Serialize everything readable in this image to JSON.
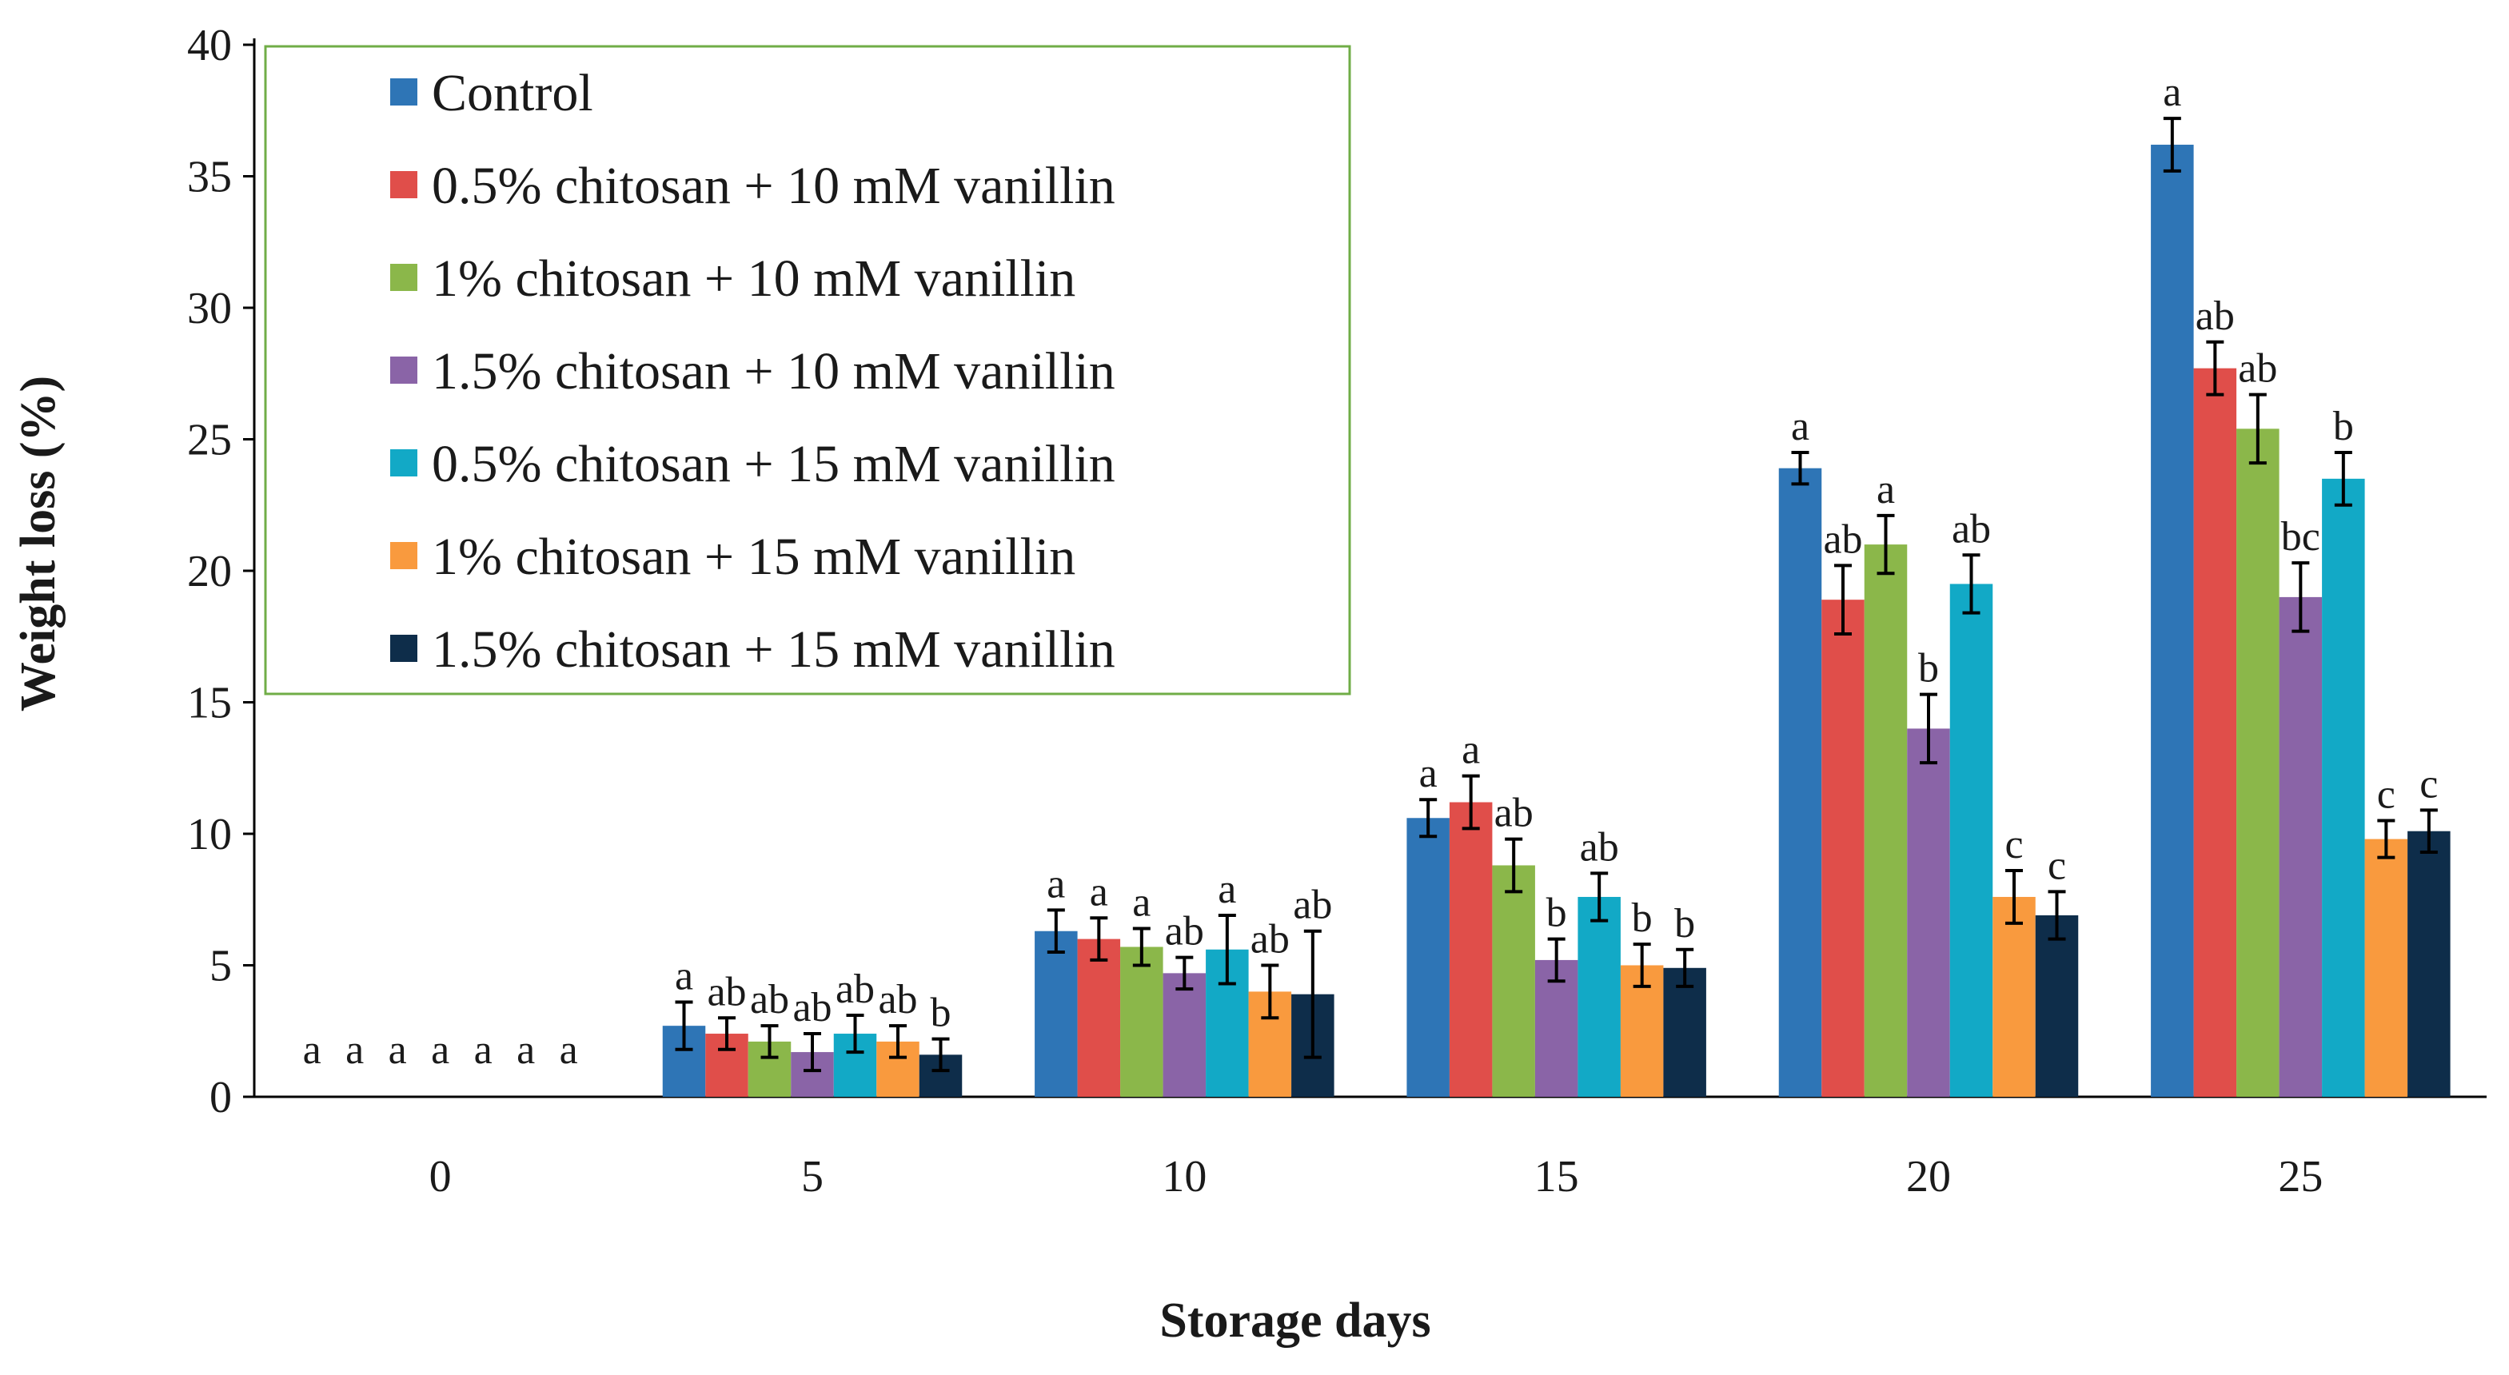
{
  "chart_data": {
    "type": "bar",
    "title": "",
    "xlabel": "Storage days",
    "ylabel": "Weight loss (%)",
    "ylim": [
      0,
      40
    ],
    "yticks": [
      0,
      5,
      10,
      15,
      20,
      25,
      30,
      35,
      40
    ],
    "categories": [
      "0",
      "5",
      "10",
      "15",
      "20",
      "25"
    ],
    "grid": false,
    "legend_position": "top-left",
    "series": [
      {
        "name": "Control",
        "color": "#2E75B6",
        "values": [
          0,
          2.7,
          6.3,
          10.6,
          23.9,
          36.2
        ],
        "errors": [
          0,
          0.9,
          0.8,
          0.7,
          0.6,
          1.0
        ],
        "letters": [
          "a",
          "a",
          "a",
          "a",
          "a",
          "a"
        ]
      },
      {
        "name": "0.5% chitosan + 10 mM vanillin",
        "color": "#E04E4A",
        "values": [
          0,
          2.4,
          6.0,
          11.2,
          18.9,
          27.7
        ],
        "errors": [
          0,
          0.6,
          0.8,
          1.0,
          1.3,
          1.0
        ],
        "letters": [
          "a",
          "ab",
          "a",
          "a",
          "ab",
          "ab"
        ]
      },
      {
        "name": "1% chitosan + 10 mM vanillin",
        "color": "#8BB74A",
        "values": [
          0,
          2.1,
          5.7,
          8.8,
          21.0,
          25.4
        ],
        "errors": [
          0,
          0.6,
          0.7,
          1.0,
          1.1,
          1.3
        ],
        "letters": [
          "a",
          "ab",
          "a",
          "ab",
          "a",
          "ab"
        ]
      },
      {
        "name": "1.5% chitosan + 10 mM vanillin",
        "color": "#8A64A7",
        "values": [
          0,
          1.7,
          4.7,
          5.2,
          14.0,
          19.0
        ],
        "errors": [
          0,
          0.7,
          0.6,
          0.8,
          1.3,
          1.3
        ],
        "letters": [
          "a",
          "ab",
          "ab",
          "b",
          "b",
          "bc"
        ]
      },
      {
        "name": "0.5% chitosan + 15 mM vanillin",
        "color": "#12A9C6",
        "values": [
          0,
          2.4,
          5.6,
          7.6,
          19.5,
          23.5
        ],
        "errors": [
          0,
          0.7,
          1.3,
          0.9,
          1.1,
          1.0
        ],
        "letters": [
          "a",
          "ab",
          "a",
          "ab",
          "ab",
          "b"
        ]
      },
      {
        "name": "1% chitosan + 15 mM vanillin",
        "color": "#F99A3E",
        "values": [
          0,
          2.1,
          4.0,
          5.0,
          7.6,
          9.8
        ],
        "errors": [
          0,
          0.6,
          1.0,
          0.8,
          1.0,
          0.7
        ],
        "letters": [
          "a",
          "ab",
          "ab",
          "b",
          "c",
          "c"
        ]
      },
      {
        "name": "1.5% chitosan + 15 mM vanillin",
        "color": "#0E2D4A",
        "values": [
          0,
          1.6,
          3.9,
          4.9,
          6.9,
          10.1
        ],
        "errors": [
          0,
          0.6,
          2.4,
          0.7,
          0.9,
          0.8
        ],
        "letters": [
          "a",
          "b",
          "ab",
          "b",
          "c",
          "c"
        ]
      }
    ]
  }
}
